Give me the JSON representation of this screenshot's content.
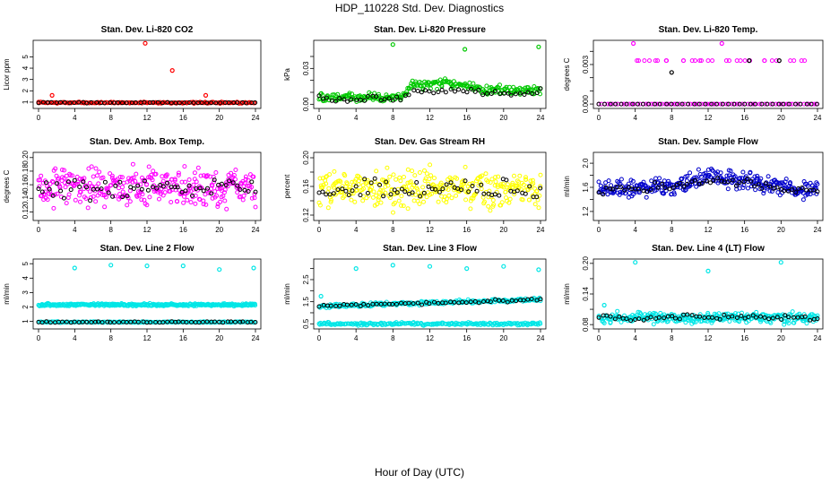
{
  "figure": {
    "title": "HDP_110228  Std. Dev. Diagnostics",
    "xlabel": "Hour of Day (UTC)"
  },
  "chart_data": [
    {
      "type": "scatter",
      "title": "Stan. Dev. Li-820 CO2",
      "ylabel": "Licor ppm",
      "xlim": [
        0,
        24
      ],
      "xticks": [
        0,
        4,
        8,
        12,
        16,
        20,
        24
      ],
      "ylim": [
        0.6,
        6.3
      ],
      "yticks": [
        1,
        2,
        3,
        4,
        5
      ],
      "ytick_labels": [
        "1",
        "2",
        "3",
        "4",
        "5"
      ],
      "series": [
        {
          "name": "all",
          "color": "#ff0000",
          "base": 0.95,
          "noise": 0.05,
          "count": 160,
          "drift": [],
          "outliers": [
            [
              1.5,
              1.6
            ],
            [
              11.8,
              6.2
            ],
            [
              14.8,
              3.8
            ],
            [
              18.5,
              1.6
            ]
          ]
        },
        {
          "name": "hourly",
          "color": "#000000",
          "base": 0.95,
          "noise": 0.03,
          "count": 50,
          "drift": [],
          "outliers": []
        }
      ]
    },
    {
      "type": "scatter",
      "title": "Stan. Dev. Li-820 Pressure",
      "ylabel": "kPa",
      "xlim": [
        0,
        24
      ],
      "xticks": [
        0,
        4,
        8,
        12,
        16,
        20,
        24
      ],
      "ylim": [
        -0.002,
        0.052
      ],
      "yticks": [
        0,
        0.01,
        0.02,
        0.03,
        0.04
      ],
      "ytick_labels": [
        "0.00",
        "",
        "",
        "0.03",
        ""
      ],
      "series": [
        {
          "name": "all",
          "color": "#00c800",
          "base": 0.006,
          "noise": 0.003,
          "count": 260,
          "drift": [
            [
              0,
              0.005
            ],
            [
              9,
              0.006
            ],
            [
              10,
              0.016
            ],
            [
              14,
              0.018
            ],
            [
              18,
              0.012
            ],
            [
              24,
              0.012
            ]
          ],
          "outliers": [
            [
              8,
              0.05
            ],
            [
              15.8,
              0.046
            ],
            [
              23.8,
              0.048
            ]
          ]
        },
        {
          "name": "hourly",
          "color": "#000000",
          "base": 0.005,
          "noise": 0.002,
          "count": 55,
          "drift": [
            [
              0,
              0.004
            ],
            [
              9,
              0.005
            ],
            [
              10,
              0.01
            ],
            [
              14,
              0.012
            ],
            [
              18,
              0.009
            ],
            [
              24,
              0.01
            ]
          ],
          "outliers": []
        }
      ]
    },
    {
      "type": "scatter",
      "title": "Stan. Dev. Li-820 Temp.",
      "ylabel": "degrees C",
      "xlim": [
        0,
        24
      ],
      "xticks": [
        0,
        4,
        8,
        12,
        16,
        20,
        24
      ],
      "ylim": [
        -0.0002,
        0.0047
      ],
      "yticks": [
        0,
        0.001,
        0.002,
        0.003,
        0.004
      ],
      "ytick_labels": [
        "0.000",
        "",
        "",
        "0.003",
        ""
      ],
      "series": [
        {
          "name": "zero",
          "color": "#ff00ff",
          "base": 0.0,
          "noise": 0.0,
          "count": 80,
          "drift": [],
          "outliers": [
            [
              3.8,
              0.0046
            ],
            [
              13.5,
              0.0046
            ]
          ]
        },
        {
          "name": "step",
          "color": "#ff00ff",
          "base": 0.0033,
          "noise": 0.0,
          "count": 30,
          "drift": [],
          "outliers": []
        },
        {
          "name": "hourly",
          "color": "#000000",
          "base": 0.0,
          "noise": 0.0,
          "count": 40,
          "drift": [],
          "outliers": [
            [
              8,
              0.0024
            ],
            [
              16.5,
              0.0033
            ],
            [
              19.8,
              0.0033
            ]
          ]
        }
      ]
    },
    {
      "type": "scatter",
      "title": "Stan. Dev. Amb. Box Temp.",
      "ylabel": "degrees C",
      "xlim": [
        0,
        24
      ],
      "xticks": [
        0,
        4,
        8,
        12,
        16,
        20,
        24
      ],
      "ylim": [
        0.11,
        0.205
      ],
      "yticks": [
        0.12,
        0.14,
        0.16,
        0.18,
        0.2
      ],
      "ytick_labels": [
        "0.12",
        "0.14",
        "0.16",
        "0.18",
        "0.20"
      ],
      "series": [
        {
          "name": "all",
          "color": "#ff00ff",
          "base": 0.157,
          "noise": 0.022,
          "count": 330,
          "drift": [],
          "outliers": []
        },
        {
          "name": "hourly",
          "color": "#000000",
          "base": 0.155,
          "noise": 0.012,
          "count": 60,
          "drift": [],
          "outliers": []
        }
      ]
    },
    {
      "type": "scatter",
      "title": "Stan. Dev. Gas Stream RH",
      "ylabel": "percent",
      "xlim": [
        0,
        24
      ],
      "xticks": [
        0,
        4,
        8,
        12,
        16,
        20,
        24
      ],
      "ylim": [
        0.115,
        0.205
      ],
      "yticks": [
        0.12,
        0.14,
        0.16,
        0.18,
        0.2
      ],
      "ytick_labels": [
        "0.12",
        "",
        "0.16",
        "",
        "0.20"
      ],
      "series": [
        {
          "name": "all",
          "color": "#ffff00",
          "base": 0.157,
          "noise": 0.02,
          "count": 330,
          "drift": [],
          "outliers": []
        },
        {
          "name": "hourly",
          "color": "#000000",
          "base": 0.155,
          "noise": 0.012,
          "count": 60,
          "drift": [],
          "outliers": []
        }
      ]
    },
    {
      "type": "scatter",
      "title": "Stan. Dev. Sample Flow",
      "ylabel": "ml/min",
      "xlim": [
        0,
        24
      ],
      "xticks": [
        0,
        4,
        8,
        12,
        16,
        20,
        24
      ],
      "ylim": [
        1.08,
        2.15
      ],
      "yticks": [
        1.2,
        1.4,
        1.6,
        1.8,
        2.0
      ],
      "ytick_labels": [
        "1.2",
        "",
        "1.6",
        "",
        "2.0"
      ],
      "series": [
        {
          "name": "all",
          "color": "#0000cc",
          "base": 1.62,
          "noise": 0.12,
          "count": 330,
          "drift": [
            [
              0,
              1.55
            ],
            [
              8,
              1.62
            ],
            [
              12,
              1.78
            ],
            [
              16,
              1.7
            ],
            [
              20,
              1.58
            ],
            [
              24,
              1.55
            ]
          ],
          "outliers": []
        },
        {
          "name": "hourly",
          "color": "#000000",
          "base": 1.6,
          "noise": 0.06,
          "count": 60,
          "drift": [
            [
              0,
              1.55
            ],
            [
              8,
              1.6
            ],
            [
              12,
              1.72
            ],
            [
              16,
              1.68
            ],
            [
              20,
              1.58
            ],
            [
              24,
              1.55
            ]
          ],
          "outliers": []
        }
      ]
    },
    {
      "type": "scatter",
      "title": "Stan. Dev. Line 2 Flow",
      "ylabel": "ml/min",
      "xlim": [
        0,
        24
      ],
      "xticks": [
        0,
        4,
        8,
        12,
        16,
        20,
        24
      ],
      "ylim": [
        0.6,
        5.2
      ],
      "yticks": [
        1,
        2,
        3,
        4,
        5
      ],
      "ytick_labels": [
        "1",
        "2",
        "3",
        "4",
        "5"
      ],
      "series": [
        {
          "name": "upper",
          "color": "#00e6e6",
          "base": 2.15,
          "noise": 0.07,
          "count": 330,
          "drift": [],
          "outliers": [
            [
              4,
              4.7
            ],
            [
              8,
              4.9
            ],
            [
              12,
              4.85
            ],
            [
              16,
              4.85
            ],
            [
              20,
              4.6
            ],
            [
              23.8,
              4.7
            ]
          ]
        },
        {
          "name": "lower",
          "color": "#00e6e6",
          "base": 0.95,
          "noise": 0.03,
          "count": 200,
          "drift": [],
          "outliers": []
        },
        {
          "name": "hourly",
          "color": "#000000",
          "base": 0.95,
          "noise": 0.03,
          "count": 55,
          "drift": [],
          "outliers": []
        }
      ]
    },
    {
      "type": "scatter",
      "title": "Stan. Dev. Line 3 Flow",
      "ylabel": "ml/min",
      "xlim": [
        0,
        24
      ],
      "xticks": [
        0,
        4,
        8,
        12,
        16,
        20,
        24
      ],
      "ylim": [
        0.35,
        3.35
      ],
      "yticks": [
        0.5,
        1.0,
        1.5,
        2.0,
        2.5,
        3.0
      ],
      "ytick_labels": [
        "0.5",
        "",
        "1.5",
        "",
        "2.5",
        ""
      ],
      "series": [
        {
          "name": "upper",
          "color": "#00e6e6",
          "base": 1.35,
          "noise": 0.07,
          "count": 260,
          "drift": [
            [
              0,
              1.3
            ],
            [
              12,
              1.45
            ],
            [
              24,
              1.6
            ]
          ],
          "outliers": [
            [
              0.2,
              1.75
            ],
            [
              4,
              3.0
            ],
            [
              8,
              3.15
            ],
            [
              12,
              3.1
            ],
            [
              16,
              3.0
            ],
            [
              20,
              3.1
            ],
            [
              23.8,
              2.95
            ]
          ]
        },
        {
          "name": "lower",
          "color": "#00e6e6",
          "base": 0.5,
          "noise": 0.05,
          "count": 220,
          "drift": [],
          "outliers": []
        },
        {
          "name": "hourly",
          "color": "#000000",
          "base": 1.35,
          "noise": 0.05,
          "count": 55,
          "drift": [
            [
              0,
              1.3
            ],
            [
              12,
              1.45
            ],
            [
              24,
              1.6
            ]
          ],
          "outliers": []
        }
      ]
    },
    {
      "type": "scatter",
      "title": "Stan. Dev. Line 4 (LT) Flow",
      "ylabel": "ml/min",
      "xlim": [
        0,
        24
      ],
      "xticks": [
        0,
        4,
        8,
        12,
        16,
        20,
        24
      ],
      "ylim": [
        0.075,
        0.205
      ],
      "yticks": [
        0.08,
        0.11,
        0.14,
        0.17,
        0.2
      ],
      "ytick_labels": [
        "0.08",
        "",
        "0.14",
        "",
        "0.20"
      ],
      "series": [
        {
          "name": "all",
          "color": "#00e6e6",
          "base": 0.093,
          "noise": 0.008,
          "count": 330,
          "drift": [],
          "outliers": [
            [
              0.6,
              0.118
            ],
            [
              4,
              0.202
            ],
            [
              12,
              0.185
            ],
            [
              20,
              0.202
            ]
          ]
        },
        {
          "name": "hourly",
          "color": "#000000",
          "base": 0.094,
          "noise": 0.005,
          "count": 55,
          "drift": [],
          "outliers": []
        }
      ]
    }
  ]
}
